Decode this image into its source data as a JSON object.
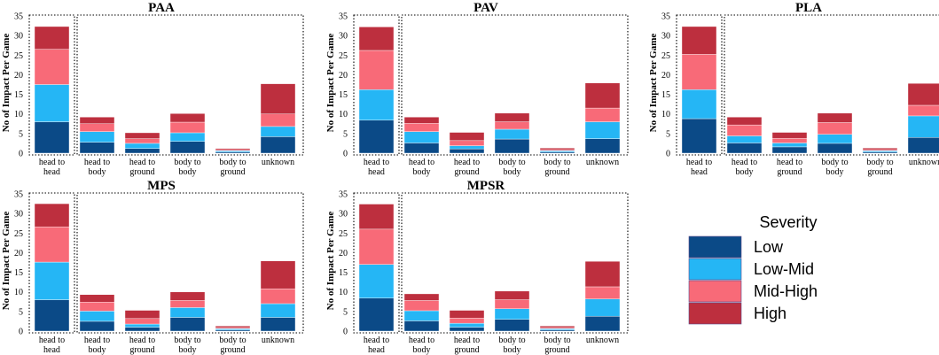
{
  "chart_data": {
    "type": "bar",
    "stacked": true,
    "y_axis_label": "No of Impact Per Game",
    "ylim": [
      0,
      35
    ],
    "yticks": [
      0,
      5,
      10,
      15,
      20,
      25,
      30,
      35
    ],
    "categories": [
      [
        "head to",
        "head"
      ],
      [
        "head to",
        "body"
      ],
      [
        "head to",
        "ground"
      ],
      [
        "body to",
        "body"
      ],
      [
        "body to",
        "ground"
      ],
      [
        "unknown"
      ]
    ],
    "colors": {
      "Low": "#0b4a87",
      "Low-Mid": "#25b6f5",
      "Mid-High": "#f86a78",
      "High": "#bd2f3e"
    },
    "legend": {
      "title": "Severity",
      "items": [
        "Low",
        "Low-Mid",
        "Mid-High",
        "High"
      ]
    },
    "panels": [
      {
        "title": "PAA",
        "series": [
          {
            "name": "Low",
            "values": [
              8.0,
              2.8,
              1.2,
              3.0,
              0.3,
              4.2
            ]
          },
          {
            "name": "Low-Mid",
            "values": [
              9.5,
              2.7,
              1.3,
              2.2,
              0.3,
              2.6
            ]
          },
          {
            "name": "Mid-High",
            "values": [
              9.0,
              2.0,
              1.2,
              2.7,
              0.3,
              3.2
            ]
          },
          {
            "name": "High",
            "values": [
              5.8,
              1.7,
              1.5,
              2.2,
              0.3,
              7.7
            ]
          }
        ]
      },
      {
        "title": "PAV",
        "series": [
          {
            "name": "Low",
            "values": [
              8.4,
              2.6,
              1.1,
              3.6,
              0.3,
              3.7
            ]
          },
          {
            "name": "Low-Mid",
            "values": [
              7.8,
              2.9,
              0.8,
              2.5,
              0.3,
              4.3
            ]
          },
          {
            "name": "Mid-High",
            "values": [
              10.0,
              2.1,
              1.3,
              1.9,
              0.3,
              3.5
            ]
          },
          {
            "name": "High",
            "values": [
              6.0,
              1.6,
              2.1,
              2.2,
              0.4,
              6.4
            ]
          }
        ]
      },
      {
        "title": "PLA",
        "series": [
          {
            "name": "Low",
            "values": [
              8.8,
              2.6,
              1.6,
              2.5,
              0.3,
              4.0
            ]
          },
          {
            "name": "Low-Mid",
            "values": [
              7.4,
              1.8,
              1.0,
              2.3,
              0.3,
              5.5
            ]
          },
          {
            "name": "Mid-High",
            "values": [
              9.0,
              2.8,
              1.2,
              3.0,
              0.3,
              2.7
            ]
          },
          {
            "name": "High",
            "values": [
              7.1,
              2.0,
              1.5,
              2.4,
              0.4,
              5.6
            ]
          }
        ]
      },
      {
        "title": "MPS",
        "series": [
          {
            "name": "Low",
            "values": [
              8.0,
              2.5,
              1.0,
              3.5,
              0.3,
              3.5
            ]
          },
          {
            "name": "Low-Mid",
            "values": [
              9.6,
              2.6,
              0.8,
              2.5,
              0.3,
              3.5
            ]
          },
          {
            "name": "Mid-High",
            "values": [
              9.0,
              2.3,
              1.4,
              1.8,
              0.3,
              3.8
            ]
          },
          {
            "name": "High",
            "values": [
              5.9,
              1.9,
              2.1,
              2.2,
              0.4,
              7.1
            ]
          }
        ]
      },
      {
        "title": "MPSR",
        "series": [
          {
            "name": "Low",
            "values": [
              8.4,
              2.6,
              1.0,
              3.0,
              0.3,
              3.8
            ]
          },
          {
            "name": "Low-Mid",
            "values": [
              8.6,
              2.6,
              1.0,
              2.7,
              0.3,
              4.4
            ]
          },
          {
            "name": "Mid-High",
            "values": [
              9.0,
              2.6,
              1.3,
              2.3,
              0.3,
              3.1
            ]
          },
          {
            "name": "High",
            "values": [
              6.4,
              1.7,
              2.0,
              2.2,
              0.4,
              6.5
            ]
          }
        ]
      }
    ]
  }
}
